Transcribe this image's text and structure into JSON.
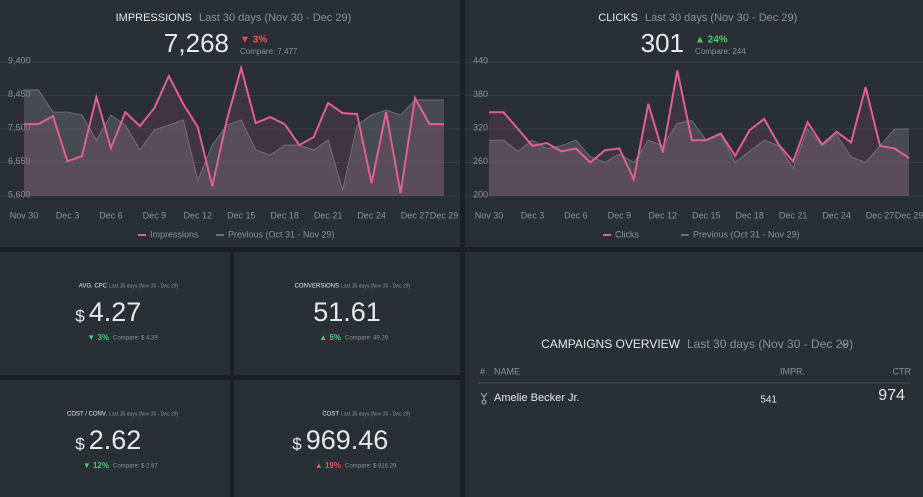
{
  "chart_data": [
    {
      "type": "line",
      "title": "IMPRESSIONS",
      "subtitle": "Last 30 days (Nov 30 - Dec 29)",
      "kpi": {
        "value": "7,268",
        "change": "▼ 3%",
        "change_color": "#f0524f",
        "compare": "Compare: 7,477"
      },
      "categories": [
        "Nov 30",
        null,
        null,
        "Dec 3",
        null,
        null,
        "Dec 6",
        null,
        null,
        "Dec 9",
        null,
        null,
        "Dec 12",
        null,
        null,
        "Dec 15",
        null,
        null,
        "Dec 18",
        null,
        null,
        "Dec 21",
        null,
        null,
        "Dec 24",
        null,
        null,
        "Dec 27",
        null,
        "Dec 29"
      ],
      "series": [
        {
          "name": "Impressions",
          "color": "#e0608f",
          "values": [
            7640,
            7640,
            7866,
            6588,
            6730,
            8406,
            6958,
            7980,
            7582,
            8094,
            9002,
            8207,
            7554,
            5878,
            7753,
            9230,
            7668,
            7838,
            7640,
            7043,
            7270,
            8236,
            7952,
            7923,
            5964,
            7980,
            5680,
            8378,
            7640,
            7640
          ]
        },
        {
          "name": "Previous (Oct 31 - Nov 29)",
          "color": "#6b6e74",
          "values": [
            8605,
            8605,
            7980,
            7980,
            7895,
            7185,
            7895,
            7611,
            6901,
            7469,
            7611,
            7753,
            6049,
            7043,
            7611,
            7753,
            6901,
            6759,
            7043,
            7043,
            6901,
            7185,
            5765,
            7611,
            7895,
            8037,
            7895,
            8321,
            8321,
            8321
          ]
        }
      ],
      "ylim": [
        5600,
        9400
      ],
      "yticks": [
        {
          "value": 5600,
          "label": "5,600"
        },
        {
          "value": 6550,
          "label": "6,550"
        },
        {
          "value": 7500,
          "label": "7,500"
        },
        {
          "value": 8450,
          "label": "8,450"
        },
        {
          "value": 9400,
          "label": "9,400"
        }
      ]
    },
    {
      "type": "line",
      "title": "CLICKS",
      "subtitle": "Last 30 days (Nov 30 - Dec 29)",
      "kpi": {
        "value": "301",
        "change": "▲ 24%",
        "change_color": "#3ecf6e",
        "compare": "Compare: 244"
      },
      "categories": [
        "Nov 30",
        null,
        null,
        "Dec 3",
        null,
        null,
        "Dec 6",
        null,
        null,
        "Dec 9",
        null,
        null,
        "Dec 12",
        null,
        null,
        "Dec 15",
        null,
        null,
        "Dec 18",
        null,
        null,
        "Dec 21",
        null,
        null,
        "Dec 24",
        null,
        null,
        "Dec 27",
        null,
        "Dec 29"
      ],
      "series": [
        {
          "name": "Clicks",
          "color": "#e0608f",
          "values": [
            350,
            350,
            320,
            290,
            295,
            280,
            285,
            260,
            282,
            285,
            230,
            365,
            278,
            425,
            300,
            300,
            312,
            272,
            318,
            338,
            292,
            262,
            332,
            292,
            315,
            296,
            395,
            290,
            285,
            268
          ]
        },
        {
          "name": "Previous (Oct 31 - Nov 29)",
          "color": "#6b6e74",
          "values": [
            300,
            300,
            280,
            300,
            285,
            290,
            300,
            270,
            260,
            275,
            260,
            300,
            290,
            330,
            335,
            300,
            310,
            260,
            280,
            300,
            290,
            250,
            320,
            290,
            310,
            270,
            260,
            290,
            320,
            320
          ]
        }
      ],
      "ylim": [
        200,
        440
      ],
      "yticks": [
        200,
        260,
        320,
        380,
        440
      ]
    }
  ],
  "kpis": [
    {
      "title": "AVG. CPC",
      "subtitle": "Last 30 days (Nov 30 - Dec 29)",
      "currency": "$",
      "value": "4.27",
      "change": "▼ 3%",
      "change_color": "#3ecf6e",
      "compare": "Compare: $ 4.39"
    },
    {
      "title": "CONVERSIONS",
      "subtitle": "Last 30 days (Nov 30 - Dec 29)",
      "value": "51.61",
      "change": "▲ 5%",
      "change_color": "#3ecf6e",
      "compare": "Compare: 49.29"
    },
    {
      "title": "COST / CONV.",
      "subtitle": "Last 30 days (Nov 30 - Dec 29)",
      "currency": "$",
      "value": "2.62",
      "change": "▼ 12%",
      "change_color": "#3ecf6e",
      "compare": "Compare: $ 2.97"
    },
    {
      "title": "COST",
      "subtitle": "Last 30 days (Nov 30 - Dec 29)",
      "currency": "$",
      "value": "969.46",
      "change": "▲ 19%",
      "change_color": "#f0524f",
      "compare": "Compare: $ 816.29"
    }
  ],
  "campaigns": {
    "title": "CAMPAIGNS OVERVIEW",
    "subtitle": "Last 30 days (Nov 30 - Dec 29)",
    "columns": [
      "#",
      "NAME",
      "IMPR.",
      "CTR"
    ],
    "rows": [
      [
        "Amelie Becker Jr.",
        "541",
        "974"
      ]
    ]
  }
}
